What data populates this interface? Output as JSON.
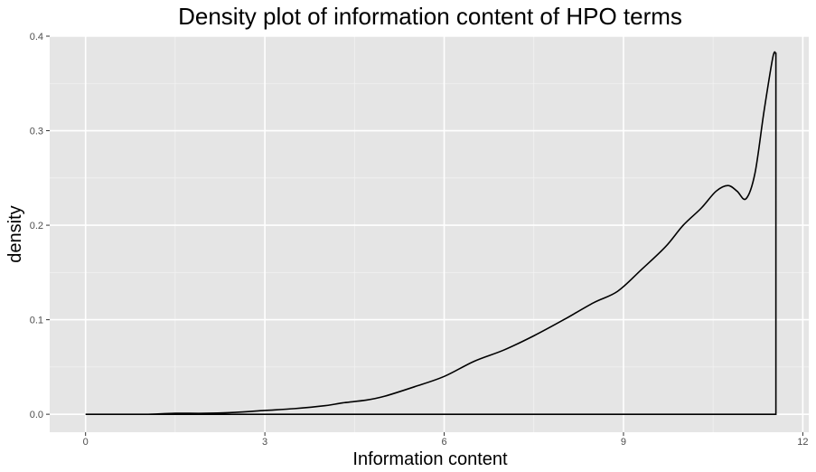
{
  "chart_data": {
    "type": "area",
    "title": "Density plot of information content of HPO terms",
    "xlabel": "Information content",
    "ylabel": "density",
    "xlim": [
      -0.6,
      12.1
    ],
    "ylim": [
      -0.019,
      0.4
    ],
    "x_ticks": [
      0,
      3,
      6,
      9,
      12
    ],
    "x_tick_labels": [
      "0",
      "3",
      "6",
      "9",
      "12"
    ],
    "y_ticks": [
      0.0,
      0.1,
      0.2,
      0.3,
      0.4
    ],
    "y_tick_labels": [
      "0.0",
      "0.1",
      "0.2",
      "0.3",
      "0.4"
    ],
    "grid": true,
    "panel_background": "#e5e5e5",
    "line_color": "#000000",
    "series": [
      {
        "x": [
          0,
          0.5,
          1.0,
          1.5,
          2.0,
          2.5,
          3.0,
          3.5,
          4.0,
          4.3,
          4.7,
          5.0,
          5.5,
          6.0,
          6.5,
          7.0,
          7.5,
          8.0,
          8.5,
          8.9,
          9.3,
          9.7,
          10.0,
          10.3,
          10.55,
          10.75,
          10.9,
          11.05,
          11.2,
          11.35,
          11.5,
          11.55
        ],
        "y": [
          0.0,
          0.0,
          0.0,
          0.001,
          0.001,
          0.002,
          0.004,
          0.006,
          0.009,
          0.012,
          0.015,
          0.019,
          0.029,
          0.04,
          0.056,
          0.068,
          0.083,
          0.1,
          0.118,
          0.13,
          0.153,
          0.177,
          0.2,
          0.218,
          0.236,
          0.242,
          0.236,
          0.228,
          0.255,
          0.32,
          0.378,
          0.381
        ]
      }
    ]
  }
}
